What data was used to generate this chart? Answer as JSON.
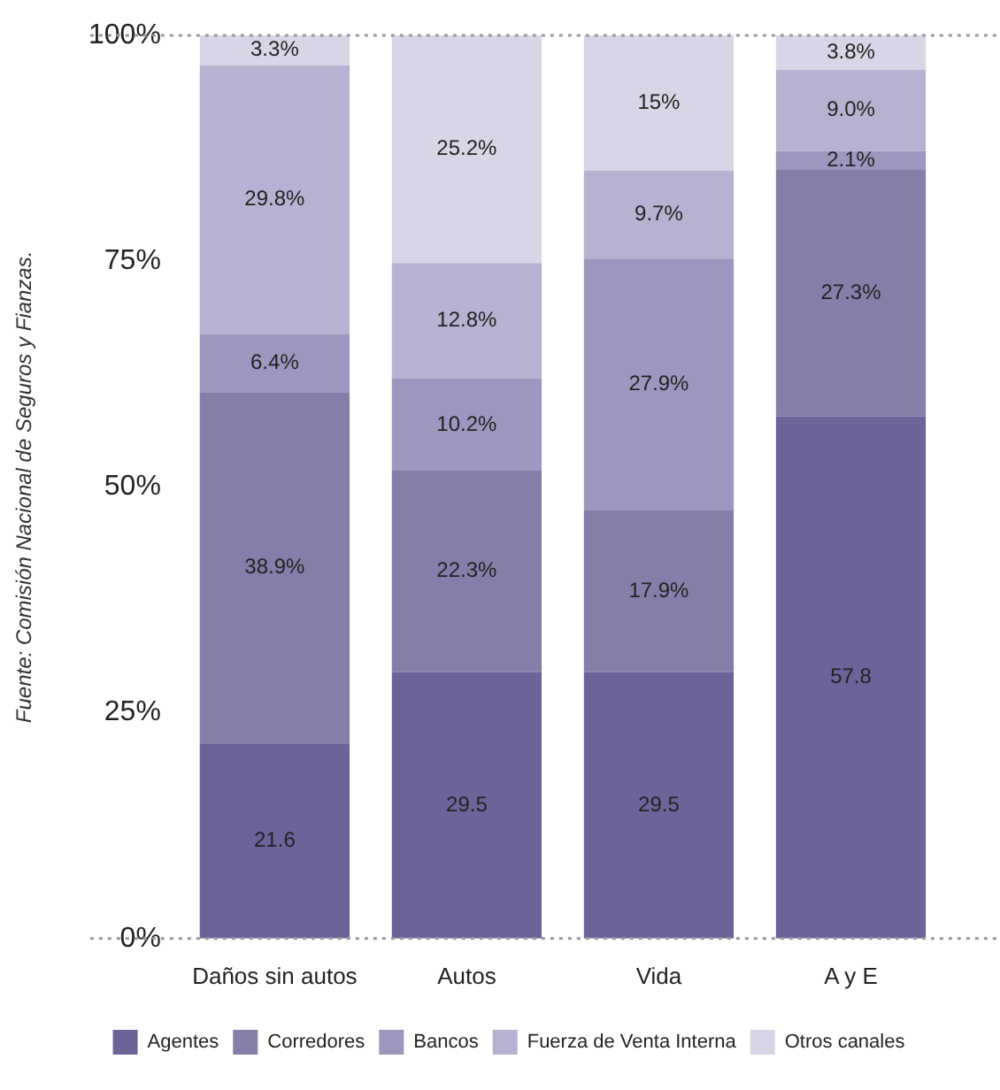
{
  "chart_data": {
    "type": "bar",
    "stacked": true,
    "categories": [
      "Daños sin autos",
      "Autos",
      "Vida",
      "A y E"
    ],
    "series": [
      {
        "name": "Agentes",
        "color": "#6a6499",
        "values": [
          21.6,
          29.5,
          29.5,
          57.8
        ],
        "value_labels": [
          "21.6",
          "29.5",
          "29.5",
          "57.8"
        ]
      },
      {
        "name": "Corredores",
        "color": "#837fa8",
        "values": [
          38.9,
          22.3,
          17.9,
          27.3
        ],
        "value_labels": [
          "38.9%",
          "22.3%",
          "17.9%",
          "27.3%"
        ]
      },
      {
        "name": "Bancos",
        "color": "#9b97bf",
        "values": [
          6.4,
          10.2,
          27.9,
          2.1
        ],
        "value_labels": [
          "6.4%",
          "10.2%",
          "27.9%",
          "2.1%"
        ]
      },
      {
        "name": "Fuerza de Venta Interna",
        "color": "#b6b2d2",
        "values": [
          29.8,
          12.8,
          9.7,
          9.0
        ],
        "value_labels": [
          "29.8%",
          "12.8%",
          "9.7%",
          "9.0%"
        ]
      },
      {
        "name": "Otros canales",
        "color": "#d8d6e6",
        "values": [
          3.3,
          25.2,
          15,
          3.8
        ],
        "value_labels": [
          "3.3%",
          "25.2%",
          "15%",
          "3.8%"
        ]
      }
    ],
    "ylim": [
      0,
      100
    ],
    "yticks": [
      {
        "value": 0,
        "label": "0%"
      },
      {
        "value": 25,
        "label": "25%"
      },
      {
        "value": 50,
        "label": "50%"
      },
      {
        "value": 75,
        "label": "75%"
      },
      {
        "value": 100,
        "label": "100%"
      }
    ],
    "ref_lines": [
      {
        "axis": "y",
        "value": 0,
        "color": "#999999",
        "line_style": "dotted"
      },
      {
        "axis": "y",
        "value": 100,
        "color": "#999999",
        "line_style": "dotted"
      }
    ],
    "legend": "bottom",
    "annotations": [
      "Fuente: Comisión Nacional de Seguros y Fianzas."
    ]
  }
}
